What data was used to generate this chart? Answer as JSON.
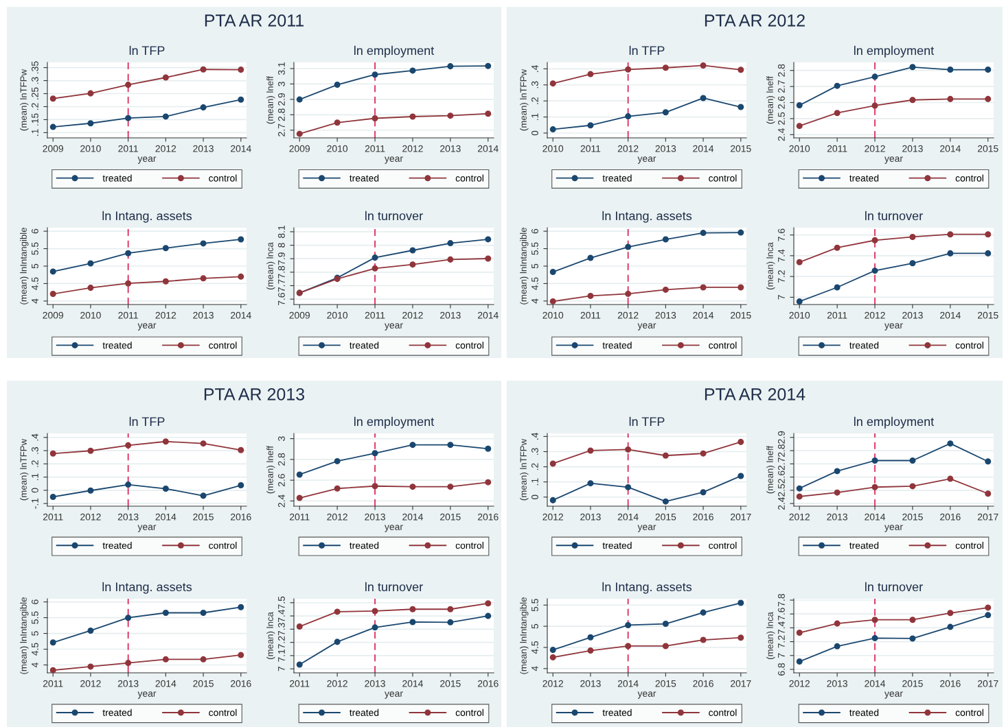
{
  "chart_data": [
    {
      "type": "line",
      "title": "ln TFP",
      "xlabel": "year",
      "ylabel": "(mean) lnTFPw",
      "annotations": [
        "PTA AR 2011"
      ],
      "x": [
        2009,
        2010,
        2011,
        2012,
        2013,
        2014
      ],
      "xlim": [
        2008.85,
        2014.15
      ],
      "xticks": [
        2009,
        2010,
        2011,
        2012,
        2013,
        2014
      ],
      "ylim": [
        0.08,
        0.37
      ],
      "yticks": [
        {
          "value": 0.1,
          "label": ".1"
        },
        {
          "value": 0.15,
          "label": ".15"
        },
        {
          "value": 0.2,
          "label": ".2"
        },
        {
          "value": 0.25,
          "label": ".25"
        },
        {
          "value": 0.3,
          "label": ".3"
        },
        {
          "value": 0.35,
          "label": ".35"
        }
      ],
      "grid": "y",
      "legend": "bottom",
      "marker": "circle",
      "line_style": "solid",
      "ref_lines": [
        {
          "axis": "x",
          "value": 2011,
          "color": "#d81b4f",
          "line_style": "dashed"
        }
      ],
      "series": [
        {
          "name": "treated",
          "color": "#1a476f",
          "values": [
            0.122,
            0.136,
            0.156,
            0.162,
            0.197,
            0.227
          ]
        },
        {
          "name": "control",
          "color": "#90353b",
          "values": [
            0.231,
            0.251,
            0.284,
            0.312,
            0.343,
            0.342
          ]
        }
      ]
    },
    {
      "type": "line",
      "title": "ln employment",
      "xlabel": "year",
      "ylabel": "(mean) lneff",
      "x": [
        2009,
        2010,
        2011,
        2012,
        2013,
        2014
      ],
      "xlim": [
        2008.85,
        2014.15
      ],
      "xticks": [
        2009,
        2010,
        2011,
        2012,
        2013,
        2014
      ],
      "ylim": [
        2.65,
        3.14
      ],
      "yticks": [
        2.7,
        2.8,
        2.9,
        3,
        3.1
      ],
      "grid": "y",
      "legend": "bottom",
      "marker": "circle",
      "line_style": "solid",
      "ref_lines": [
        {
          "axis": "x",
          "value": 2011,
          "color": "#d81b4f",
          "line_style": "dashed"
        }
      ],
      "series": [
        {
          "name": "treated",
          "color": "#1a476f",
          "values": [
            2.899,
            2.995,
            3.061,
            3.087,
            3.115,
            3.117
          ]
        },
        {
          "name": "control",
          "color": "#90353b",
          "values": [
            2.676,
            2.749,
            2.777,
            2.788,
            2.794,
            2.807
          ]
        }
      ]
    },
    {
      "type": "line",
      "title": "ln Intang. assets",
      "xlabel": "year",
      "ylabel": "(mean) lnIntangible",
      "x": [
        2009,
        2010,
        2011,
        2012,
        2013,
        2014
      ],
      "xlim": [
        2008.85,
        2014.15
      ],
      "xticks": [
        2009,
        2010,
        2011,
        2012,
        2013,
        2014
      ],
      "ylim": [
        3.9,
        6.1
      ],
      "yticks": [
        4,
        4.5,
        5,
        5.5,
        6
      ],
      "grid": "y",
      "legend": "bottom",
      "marker": "circle",
      "line_style": "solid",
      "ref_lines": [
        {
          "axis": "x",
          "value": 2011,
          "color": "#d81b4f",
          "line_style": "dashed"
        }
      ],
      "series": [
        {
          "name": "treated",
          "color": "#1a476f",
          "values": [
            4.845,
            5.078,
            5.369,
            5.515,
            5.65,
            5.767
          ]
        },
        {
          "name": "control",
          "color": "#90353b",
          "values": [
            4.204,
            4.379,
            4.505,
            4.563,
            4.65,
            4.699
          ]
        }
      ]
    },
    {
      "type": "line",
      "title": "ln turnover",
      "xlabel": "year",
      "ylabel": "(mean) lnca",
      "x": [
        2009,
        2010,
        2011,
        2012,
        2013,
        2014
      ],
      "xlim": [
        2008.85,
        2014.15
      ],
      "xticks": [
        2009,
        2010,
        2011,
        2012,
        2013,
        2014
      ],
      "ylim": [
        7.56,
        8.13
      ],
      "yticks": [
        7.6,
        7.7,
        7.8,
        7.9,
        8,
        8.1
      ],
      "grid": "y",
      "legend": "bottom",
      "marker": "circle",
      "line_style": "solid",
      "ref_lines": [
        {
          "axis": "x",
          "value": 2011,
          "color": "#d81b4f",
          "line_style": "dashed"
        }
      ],
      "series": [
        {
          "name": "treated",
          "color": "#1a476f",
          "values": [
            7.646,
            7.758,
            7.908,
            7.962,
            8.015,
            8.044
          ]
        },
        {
          "name": "control",
          "color": "#90353b",
          "values": [
            7.646,
            7.75,
            7.828,
            7.857,
            7.894,
            7.901
          ]
        }
      ]
    },
    {
      "type": "line",
      "title": "ln TFP",
      "xlabel": "year",
      "ylabel": "(mean) lnTFPw",
      "annotations": [
        "PTA AR 2012"
      ],
      "x": [
        2010,
        2011,
        2012,
        2013,
        2014,
        2015
      ],
      "xlim": [
        2009.85,
        2015.15
      ],
      "xticks": [
        2010,
        2011,
        2012,
        2013,
        2014,
        2015
      ],
      "ylim": [
        -0.03,
        0.44
      ],
      "yticks": [
        0,
        {
          "value": 0.1,
          "label": ".1"
        },
        {
          "value": 0.2,
          "label": ".2"
        },
        {
          "value": 0.3,
          "label": ".3"
        },
        {
          "value": 0.4,
          "label": ".4"
        }
      ],
      "grid": "y",
      "legend": "bottom",
      "marker": "circle",
      "line_style": "solid",
      "ref_lines": [
        {
          "axis": "x",
          "value": 2012,
          "color": "#d81b4f",
          "line_style": "dashed"
        }
      ],
      "series": [
        {
          "name": "treated",
          "color": "#1a476f",
          "values": [
            0.023,
            0.048,
            0.104,
            0.129,
            0.218,
            0.162
          ]
        },
        {
          "name": "control",
          "color": "#90353b",
          "values": [
            0.309,
            0.367,
            0.396,
            0.407,
            0.421,
            0.394
          ]
        }
      ]
    },
    {
      "type": "line",
      "title": "ln employment",
      "xlabel": "year",
      "ylabel": "(mean) lneff",
      "x": [
        2010,
        2011,
        2012,
        2013,
        2014,
        2015
      ],
      "xlim": [
        2009.85,
        2015.15
      ],
      "xticks": [
        2010,
        2011,
        2012,
        2013,
        2014,
        2015
      ],
      "ylim": [
        2.38,
        2.85
      ],
      "yticks": [
        2.4,
        2.5,
        2.6,
        2.7,
        2.8
      ],
      "grid": "y",
      "legend": "bottom",
      "marker": "circle",
      "line_style": "solid",
      "ref_lines": [
        {
          "axis": "x",
          "value": 2012,
          "color": "#d81b4f",
          "line_style": "dashed"
        }
      ],
      "series": [
        {
          "name": "treated",
          "color": "#1a476f",
          "values": [
            2.583,
            2.704,
            2.761,
            2.821,
            2.805,
            2.805
          ]
        },
        {
          "name": "control",
          "color": "#90353b",
          "values": [
            2.454,
            2.535,
            2.581,
            2.616,
            2.622,
            2.622
          ]
        }
      ]
    },
    {
      "type": "line",
      "title": "ln Intang. assets",
      "xlabel": "year",
      "ylabel": "(mean) lnIntangible",
      "x": [
        2010,
        2011,
        2012,
        2013,
        2014,
        2015
      ],
      "xlim": [
        2009.85,
        2015.15
      ],
      "xticks": [
        2010,
        2011,
        2012,
        2013,
        2014,
        2015
      ],
      "ylim": [
        3.9,
        6.1
      ],
      "yticks": [
        4,
        4.5,
        5,
        5.5,
        6
      ],
      "grid": "y",
      "legend": "bottom",
      "marker": "circle",
      "line_style": "solid",
      "ref_lines": [
        {
          "axis": "x",
          "value": 2012,
          "color": "#d81b4f",
          "line_style": "dashed"
        }
      ],
      "series": [
        {
          "name": "treated",
          "color": "#1a476f",
          "values": [
            4.833,
            5.235,
            5.549,
            5.765,
            5.951,
            5.961
          ]
        },
        {
          "name": "control",
          "color": "#90353b",
          "values": [
            3.99,
            4.147,
            4.206,
            4.324,
            4.392,
            4.392
          ]
        }
      ]
    },
    {
      "type": "line",
      "title": "ln turnover",
      "xlabel": "year",
      "ylabel": "(mean) lnca",
      "x": [
        2010,
        2011,
        2012,
        2013,
        2014,
        2015
      ],
      "xlim": [
        2009.85,
        2015.15
      ],
      "xticks": [
        2010,
        2011,
        2012,
        2013,
        2014,
        2015
      ],
      "ylim": [
        6.93,
        7.67
      ],
      "yticks": [
        7,
        7.2,
        7.4,
        7.6
      ],
      "grid": "y",
      "legend": "bottom",
      "marker": "circle",
      "line_style": "solid",
      "ref_lines": [
        {
          "axis": "x",
          "value": 2012,
          "color": "#d81b4f",
          "line_style": "dashed"
        }
      ],
      "series": [
        {
          "name": "treated",
          "color": "#1a476f",
          "values": [
            6.959,
            7.095,
            7.256,
            7.328,
            7.423,
            7.423
          ]
        },
        {
          "name": "control",
          "color": "#90353b",
          "values": [
            7.338,
            7.477,
            7.549,
            7.581,
            7.606,
            7.606
          ]
        }
      ]
    },
    {
      "type": "line",
      "title": "ln TFP",
      "xlabel": "year",
      "ylabel": "(mean) lnTFPw",
      "annotations": [
        "PTA AR 2013"
      ],
      "x": [
        2011,
        2012,
        2013,
        2014,
        2015,
        2016
      ],
      "xlim": [
        2010.85,
        2016.15
      ],
      "xticks": [
        2011,
        2012,
        2013,
        2014,
        2015,
        2016
      ],
      "ylim": [
        -0.12,
        0.43
      ],
      "yticks": [
        {
          "value": -0.1,
          "label": "-.1"
        },
        0,
        {
          "value": 0.1,
          "label": ".1"
        },
        {
          "value": 0.2,
          "label": ".2"
        },
        {
          "value": 0.3,
          "label": ".3"
        },
        {
          "value": 0.4,
          "label": ".4"
        }
      ],
      "grid": "y",
      "legend": "bottom",
      "marker": "circle",
      "line_style": "solid",
      "ref_lines": [
        {
          "axis": "x",
          "value": 2013,
          "color": "#d81b4f",
          "line_style": "dashed"
        }
      ],
      "series": [
        {
          "name": "treated",
          "color": "#1a476f",
          "values": [
            -0.05,
            -0.002,
            0.043,
            0.012,
            -0.041,
            0.038
          ]
        },
        {
          "name": "control",
          "color": "#90353b",
          "values": [
            0.278,
            0.299,
            0.34,
            0.369,
            0.354,
            0.304
          ]
        }
      ]
    },
    {
      "type": "line",
      "title": "ln employment",
      "xlabel": "year",
      "ylabel": "(mean) lneff",
      "x": [
        2011,
        2012,
        2013,
        2014,
        2015,
        2016
      ],
      "xlim": [
        2010.85,
        2016.15
      ],
      "xticks": [
        2011,
        2012,
        2013,
        2014,
        2015,
        2016
      ],
      "ylim": [
        2.35,
        3.05
      ],
      "yticks": [
        2.4,
        2.6,
        2.8,
        3
      ],
      "grid": "y",
      "legend": "bottom",
      "marker": "circle",
      "line_style": "solid",
      "ref_lines": [
        {
          "axis": "x",
          "value": 2013,
          "color": "#d81b4f",
          "line_style": "dashed"
        }
      ],
      "series": [
        {
          "name": "treated",
          "color": "#1a476f",
          "values": [
            2.654,
            2.783,
            2.86,
            2.94,
            2.94,
            2.903
          ]
        },
        {
          "name": "control",
          "color": "#90353b",
          "values": [
            2.429,
            2.52,
            2.543,
            2.537,
            2.537,
            2.58
          ]
        }
      ]
    },
    {
      "type": "line",
      "title": "ln Intang. assets",
      "xlabel": "year",
      "ylabel": "(mean) lnIntangible",
      "x": [
        2011,
        2012,
        2013,
        2014,
        2015,
        2016
      ],
      "xlim": [
        2010.85,
        2016.15
      ],
      "xticks": [
        2011,
        2012,
        2013,
        2014,
        2015,
        2016
      ],
      "ylim": [
        3.75,
        6.1
      ],
      "yticks": [
        4,
        4.5,
        5,
        5.5,
        6
      ],
      "grid": "y",
      "legend": "bottom",
      "marker": "circle",
      "line_style": "solid",
      "ref_lines": [
        {
          "axis": "x",
          "value": 2013,
          "color": "#d81b4f",
          "line_style": "dashed"
        }
      ],
      "series": [
        {
          "name": "treated",
          "color": "#1a476f",
          "values": [
            4.712,
            5.089,
            5.497,
            5.654,
            5.654,
            5.832
          ]
        },
        {
          "name": "control",
          "color": "#90353b",
          "values": [
            3.832,
            3.948,
            4.063,
            4.178,
            4.178,
            4.314
          ]
        }
      ]
    },
    {
      "type": "line",
      "title": "ln turnover",
      "xlabel": "year",
      "ylabel": "(mean) lnca",
      "x": [
        2011,
        2012,
        2013,
        2014,
        2015,
        2016
      ],
      "xlim": [
        2010.85,
        2016.15
      ],
      "xticks": [
        2011,
        2012,
        2013,
        2014,
        2015,
        2016
      ],
      "ylim": [
        6.97,
        7.53
      ],
      "yticks": [
        7,
        7.1,
        7.2,
        7.3,
        7.4,
        7.5
      ],
      "grid": "y",
      "legend": "bottom",
      "marker": "circle",
      "line_style": "solid",
      "ref_lines": [
        {
          "axis": "x",
          "value": 2013,
          "color": "#d81b4f",
          "line_style": "dashed"
        }
      ],
      "series": [
        {
          "name": "treated",
          "color": "#1a476f",
          "values": [
            7.032,
            7.204,
            7.313,
            7.354,
            7.352,
            7.4
          ]
        },
        {
          "name": "control",
          "color": "#90353b",
          "values": [
            7.32,
            7.432,
            7.437,
            7.451,
            7.451,
            7.495
          ]
        }
      ]
    },
    {
      "type": "line",
      "title": "ln TFP",
      "xlabel": "year",
      "ylabel": "(mean) lnTFPw",
      "annotations": [
        "PTA AR 2014"
      ],
      "x": [
        2012,
        2013,
        2014,
        2015,
        2016,
        2017
      ],
      "xlim": [
        2011.85,
        2017.15
      ],
      "xticks": [
        2012,
        2013,
        2014,
        2015,
        2016,
        2017
      ],
      "ylim": [
        -0.06,
        0.42
      ],
      "yticks": [
        0,
        {
          "value": 0.1,
          "label": ".1"
        },
        {
          "value": 0.2,
          "label": ".2"
        },
        {
          "value": 0.3,
          "label": ".3"
        },
        {
          "value": 0.4,
          "label": ".4"
        }
      ],
      "grid": "y",
      "legend": "bottom",
      "marker": "circle",
      "line_style": "solid",
      "ref_lines": [
        {
          "axis": "x",
          "value": 2014,
          "color": "#d81b4f",
          "line_style": "dashed"
        }
      ],
      "series": [
        {
          "name": "treated",
          "color": "#1a476f",
          "values": [
            -0.021,
            0.091,
            0.065,
            -0.029,
            0.032,
            0.139
          ]
        },
        {
          "name": "control",
          "color": "#90353b",
          "values": [
            0.221,
            0.307,
            0.314,
            0.274,
            0.288,
            0.364
          ]
        }
      ]
    },
    {
      "type": "line",
      "title": "ln employment",
      "xlabel": "year",
      "ylabel": "(mean) lneff",
      "x": [
        2012,
        2013,
        2014,
        2015,
        2016,
        2017
      ],
      "xlim": [
        2011.85,
        2017.15
      ],
      "xticks": [
        2012,
        2013,
        2014,
        2015,
        2016,
        2017
      ],
      "ylim": [
        2.38,
        2.93
      ],
      "yticks": [
        2.4,
        2.5,
        2.6,
        2.7,
        2.8,
        2.9
      ],
      "grid": "y",
      "legend": "bottom",
      "marker": "circle",
      "line_style": "solid",
      "ref_lines": [
        {
          "axis": "x",
          "value": 2014,
          "color": "#d81b4f",
          "line_style": "dashed"
        }
      ],
      "series": [
        {
          "name": "treated",
          "color": "#1a476f",
          "values": [
            2.514,
            2.645,
            2.725,
            2.725,
            2.854,
            2.718
          ]
        },
        {
          "name": "control",
          "color": "#90353b",
          "values": [
            2.453,
            2.483,
            2.524,
            2.531,
            2.587,
            2.475
          ]
        }
      ]
    },
    {
      "type": "line",
      "title": "ln Intang. assets",
      "xlabel": "year",
      "ylabel": "(mean) lnIntangible",
      "x": [
        2012,
        2013,
        2014,
        2015,
        2016,
        2017
      ],
      "xlim": [
        2011.85,
        2017.15
      ],
      "xticks": [
        2012,
        2013,
        2014,
        2015,
        2016,
        2017
      ],
      "ylim": [
        3.9,
        5.65
      ],
      "yticks": [
        4,
        4.5,
        5,
        5.5
      ],
      "grid": "y",
      "legend": "bottom",
      "marker": "circle",
      "line_style": "solid",
      "ref_lines": [
        {
          "axis": "x",
          "value": 2014,
          "color": "#d81b4f",
          "line_style": "dashed"
        }
      ],
      "series": [
        {
          "name": "treated",
          "color": "#1a476f",
          "values": [
            4.441,
            4.738,
            5.027,
            5.058,
            5.324,
            5.553
          ]
        },
        {
          "name": "control",
          "color": "#90353b",
          "values": [
            4.266,
            4.426,
            4.533,
            4.533,
            4.677,
            4.731
          ]
        }
      ]
    },
    {
      "type": "line",
      "title": "ln turnover",
      "xlabel": "year",
      "ylabel": "(mean) lnca",
      "x": [
        2012,
        2013,
        2014,
        2015,
        2016,
        2017
      ],
      "xlim": [
        2011.85,
        2017.15
      ],
      "xticks": [
        2012,
        2013,
        2014,
        2015,
        2016,
        2017
      ],
      "ylim": [
        6.75,
        7.82
      ],
      "yticks": [
        6.8,
        7,
        7.2,
        7.4,
        7.6,
        7.8
      ],
      "grid": "y",
      "legend": "bottom",
      "marker": "circle",
      "line_style": "solid",
      "ref_lines": [
        {
          "axis": "x",
          "value": 2014,
          "color": "#d81b4f",
          "line_style": "dashed"
        }
      ],
      "series": [
        {
          "name": "treated",
          "color": "#1a476f",
          "values": [
            6.913,
            7.133,
            7.251,
            7.246,
            7.413,
            7.584
          ]
        },
        {
          "name": "control",
          "color": "#90353b",
          "values": [
            7.329,
            7.462,
            7.516,
            7.516,
            7.614,
            7.692
          ]
        }
      ]
    }
  ]
}
